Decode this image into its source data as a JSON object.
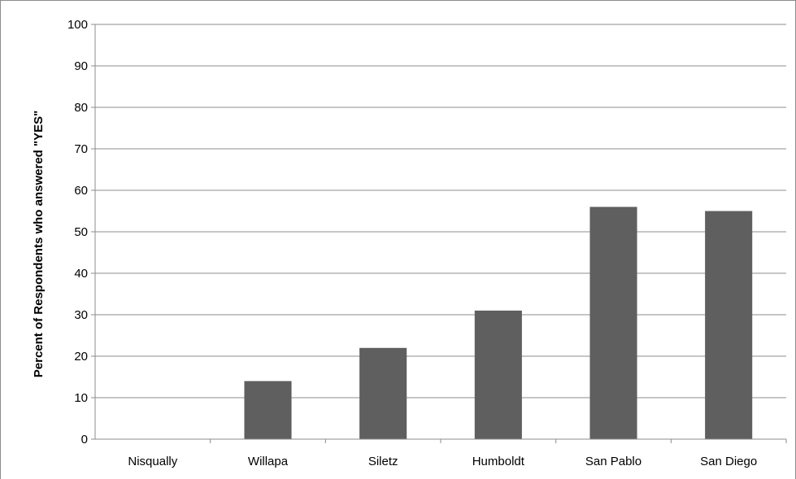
{
  "chart_data": {
    "type": "bar",
    "title": "",
    "xlabel": "",
    "ylabel": "Percent of Respondents who answered \"YES\"",
    "categories": [
      "Nisqually",
      "Willapa",
      "Siletz",
      "Humboldt",
      "San Pablo",
      "San Diego"
    ],
    "values": [
      0,
      14,
      22,
      31,
      56,
      55
    ],
    "ylim": [
      0,
      100
    ],
    "yticks": [
      "0",
      "10",
      "20",
      "30",
      "40",
      "50",
      "60",
      "70",
      "80",
      "90",
      "100"
    ],
    "grid": true,
    "legend": "none",
    "bar_color": "#5f5f5f",
    "grid_color": "#8c8c8c"
  }
}
